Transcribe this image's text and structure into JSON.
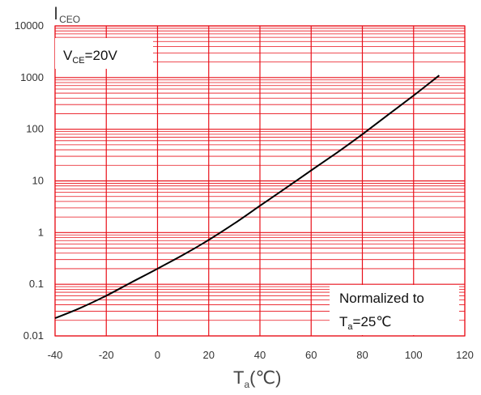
{
  "chart_data": {
    "type": "line",
    "yscale": "log",
    "xlim": [
      -40,
      120
    ],
    "ylim": [
      0.01,
      10000
    ],
    "x_ticks": [
      "-40",
      "-20",
      "0",
      "20",
      "40",
      "60",
      "80",
      "100",
      "120"
    ],
    "y_ticks": [
      "10000",
      "1000",
      "100",
      "10",
      "1",
      "0.1",
      "0.01"
    ],
    "ylabel": {
      "main": "I",
      "sub": "CEO"
    },
    "xlabel": {
      "main": "T",
      "sub": "a",
      "unit": "(℃)"
    },
    "annotations": {
      "condition": {
        "main": "V",
        "sub": "CE",
        "rest": "=20V"
      },
      "normalized_line1": "Normalized to",
      "normalized_line2": {
        "main": "T",
        "sub": "a",
        "rest": "=25℃"
      }
    },
    "grid": true,
    "grid_color": "#e8101a",
    "series": [
      {
        "color": "#000000",
        "x": [
          -40,
          -30,
          -20,
          -10,
          0,
          10,
          20,
          30,
          40,
          50,
          60,
          70,
          80,
          90,
          100,
          110
        ],
        "y": [
          0.022,
          0.035,
          0.06,
          0.11,
          0.2,
          0.37,
          0.72,
          1.5,
          3.3,
          7.2,
          16,
          35,
          80,
          190,
          450,
          1100
        ]
      }
    ]
  }
}
